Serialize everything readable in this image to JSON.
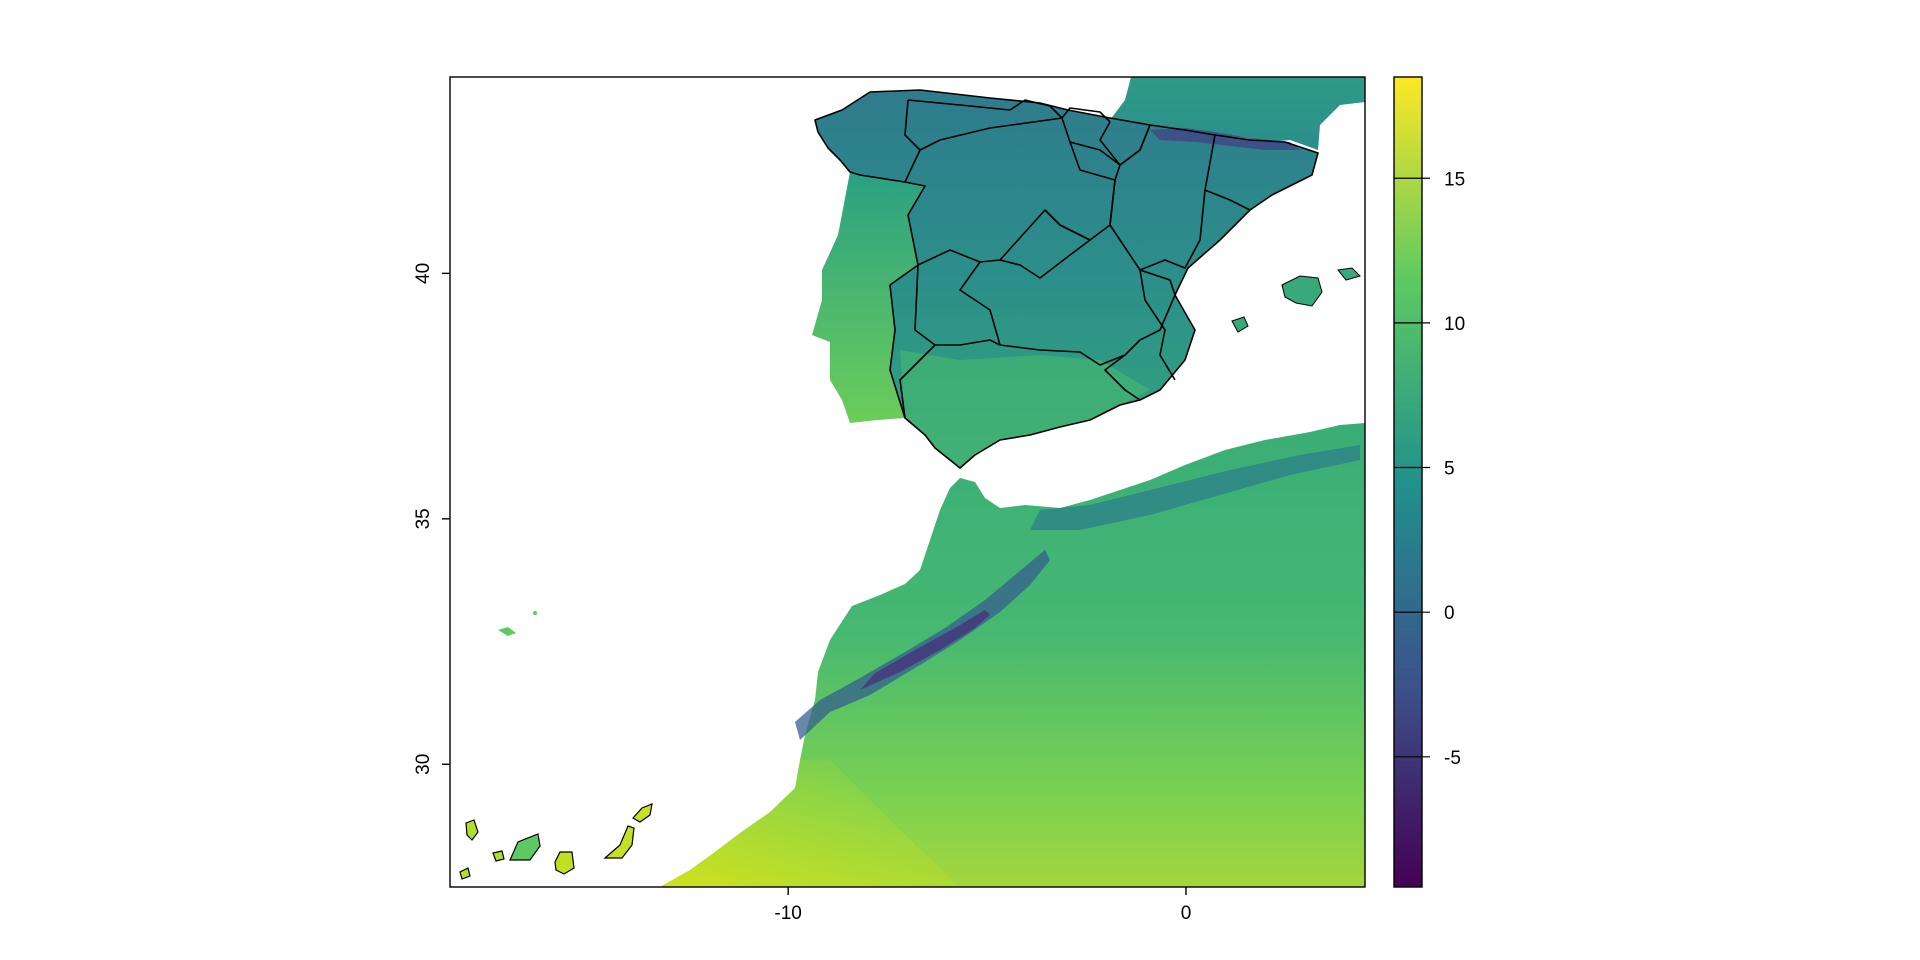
{
  "map": {
    "lon_range": [
      -18.5,
      4.5
    ],
    "lat_range": [
      27.5,
      44.0
    ],
    "x_ticks": [
      {
        "value": -10,
        "label": "-10"
      },
      {
        "value": 0,
        "label": "0"
      }
    ],
    "y_ticks": [
      {
        "value": 30,
        "label": "30"
      },
      {
        "value": 35,
        "label": "35"
      },
      {
        "value": 40,
        "label": "40"
      }
    ]
  },
  "legend": {
    "colormap": "viridis",
    "range": [
      -9.5,
      18.5
    ],
    "colors": [
      "#440154",
      "#3b528b",
      "#21918c",
      "#5ec962",
      "#fde725"
    ],
    "ticks": [
      {
        "value": -5,
        "label": "-5"
      },
      {
        "value": 0,
        "label": "0"
      },
      {
        "value": 5,
        "label": "5"
      },
      {
        "value": 10,
        "label": "10"
      },
      {
        "value": 15,
        "label": "15"
      }
    ]
  },
  "colors": {
    "background": "#ffffff",
    "borders": "#000000"
  }
}
